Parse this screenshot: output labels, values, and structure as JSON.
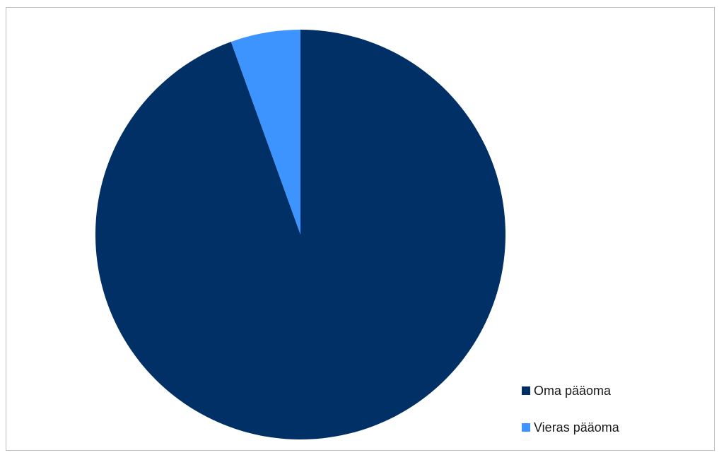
{
  "chart_data": {
    "type": "pie",
    "title": "",
    "categories": [
      "Oma pääoma",
      "Vieras pääoma"
    ],
    "values": [
      94.5,
      5.5
    ],
    "colors": [
      "#003066",
      "#3d94ff"
    ],
    "start_angle_deg": 0,
    "direction": "clockwise",
    "legend_position": "bottom-right",
    "legend": [
      {
        "label": "Oma pääoma",
        "color": "#003066"
      },
      {
        "label": "Vieras pääoma",
        "color": "#3d94ff"
      }
    ]
  }
}
